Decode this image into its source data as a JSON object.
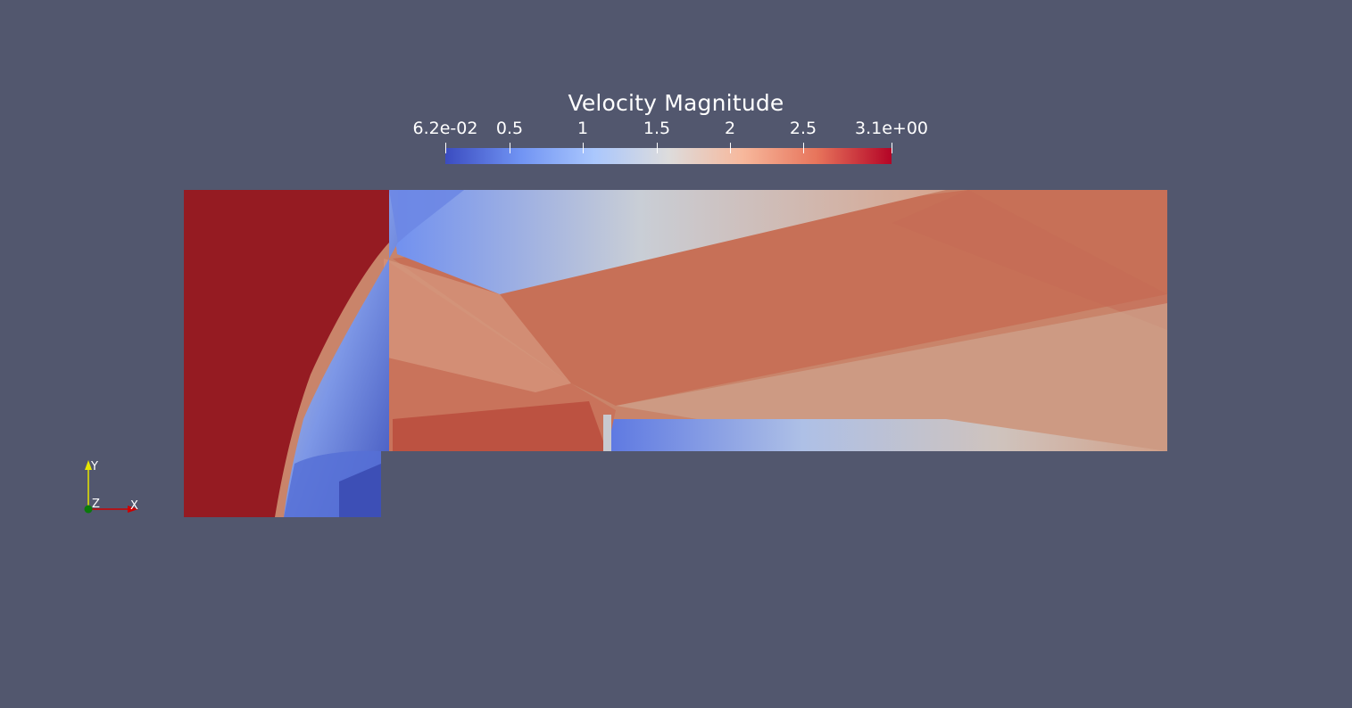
{
  "colorbar": {
    "title": "Velocity Magnitude",
    "colormap": "cool-to-warm",
    "colors": [
      "#3b4cc0",
      "#7093f3",
      "#aac7fd",
      "#dddcdc",
      "#f7b89c",
      "#e7745b",
      "#b40426"
    ],
    "range": [
      0.062,
      3.1
    ],
    "ticks": [
      {
        "label": "6.2e-02",
        "value": 0.062
      },
      {
        "label": "0.5",
        "value": 0.5
      },
      {
        "label": "1",
        "value": 1.0
      },
      {
        "label": "1.5",
        "value": 1.5
      },
      {
        "label": "2",
        "value": 2.0
      },
      {
        "label": "2.5",
        "value": 2.5
      },
      {
        "label": "3.1e+00",
        "value": 3.1
      }
    ]
  },
  "axes_widget": {
    "x_label": "X",
    "y_label": "Y",
    "z_label": "Z",
    "x_color": "#cc0000",
    "y_color": "#e6e600",
    "z_color": "#0b7a0b"
  },
  "scene": {
    "background": "#52576e",
    "field": "Velocity Magnitude",
    "geometry": "forward-facing step channel"
  }
}
